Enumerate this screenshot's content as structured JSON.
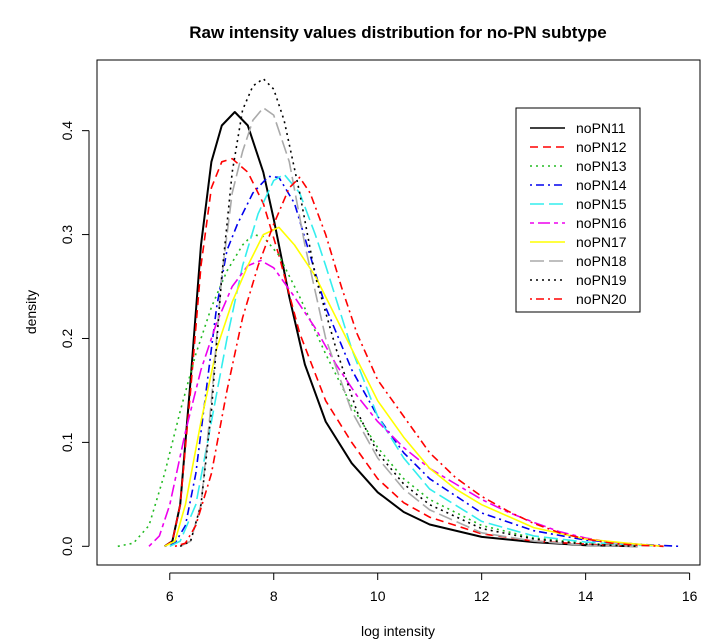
{
  "chart_data": {
    "type": "line",
    "title": "Raw intensity values distribution for no-PN subtype",
    "xlabel": "log intensity",
    "ylabel": "density",
    "xlim": [
      4.6,
      16.2
    ],
    "ylim": [
      -0.018,
      0.468
    ],
    "x_ticks": [
      6,
      8,
      10,
      12,
      14,
      16
    ],
    "y_ticks": [
      0.0,
      0.1,
      0.2,
      0.3,
      0.4
    ],
    "x_tick_labels": [
      "6",
      "8",
      "10",
      "12",
      "14",
      "16"
    ],
    "y_tick_labels": [
      "0.0",
      "0.1",
      "0.2",
      "0.3",
      "0.4"
    ],
    "grid": false,
    "legend_position": "top-right",
    "series": [
      {
        "name": "noPN11",
        "color": "#000000",
        "dash": "solid",
        "points": [
          [
            5.9,
            0
          ],
          [
            6.05,
            0.005
          ],
          [
            6.2,
            0.04
          ],
          [
            6.4,
            0.16
          ],
          [
            6.6,
            0.29
          ],
          [
            6.8,
            0.37
          ],
          [
            7.0,
            0.405
          ],
          [
            7.25,
            0.418
          ],
          [
            7.5,
            0.405
          ],
          [
            7.8,
            0.36
          ],
          [
            8.0,
            0.315
          ],
          [
            8.3,
            0.24
          ],
          [
            8.6,
            0.175
          ],
          [
            9.0,
            0.12
          ],
          [
            9.5,
            0.08
          ],
          [
            10.0,
            0.052
          ],
          [
            10.5,
            0.033
          ],
          [
            11.0,
            0.021
          ],
          [
            12.0,
            0.009
          ],
          [
            13.0,
            0.004
          ],
          [
            14.0,
            0.001
          ],
          [
            15.0,
            0
          ]
        ]
      },
      {
        "name": "noPN12",
        "color": "#ff0000",
        "dash": "dashed",
        "points": [
          [
            5.9,
            0
          ],
          [
            6.05,
            0.005
          ],
          [
            6.2,
            0.04
          ],
          [
            6.4,
            0.15
          ],
          [
            6.6,
            0.27
          ],
          [
            6.8,
            0.345
          ],
          [
            7.0,
            0.37
          ],
          [
            7.2,
            0.373
          ],
          [
            7.5,
            0.36
          ],
          [
            7.8,
            0.33
          ],
          [
            8.1,
            0.28
          ],
          [
            8.5,
            0.205
          ],
          [
            9.0,
            0.14
          ],
          [
            9.5,
            0.1
          ],
          [
            10.0,
            0.065
          ],
          [
            10.5,
            0.042
          ],
          [
            11.0,
            0.028
          ],
          [
            12.0,
            0.012
          ],
          [
            13.0,
            0.005
          ],
          [
            14.0,
            0.002
          ],
          [
            15.0,
            0
          ]
        ]
      },
      {
        "name": "noPN13",
        "color": "#22bb22",
        "dash": "dotted",
        "points": [
          [
            5.0,
            0
          ],
          [
            5.3,
            0.003
          ],
          [
            5.6,
            0.02
          ],
          [
            5.9,
            0.07
          ],
          [
            6.2,
            0.13
          ],
          [
            6.5,
            0.185
          ],
          [
            6.8,
            0.23
          ],
          [
            7.1,
            0.265
          ],
          [
            7.4,
            0.29
          ],
          [
            7.6,
            0.3
          ],
          [
            7.8,
            0.298
          ],
          [
            8.1,
            0.28
          ],
          [
            8.5,
            0.24
          ],
          [
            9.0,
            0.185
          ],
          [
            9.5,
            0.135
          ],
          [
            10.0,
            0.095
          ],
          [
            10.5,
            0.065
          ],
          [
            11.0,
            0.045
          ],
          [
            12.0,
            0.02
          ],
          [
            13.0,
            0.008
          ],
          [
            14.0,
            0.003
          ],
          [
            15.0,
            0
          ]
        ]
      },
      {
        "name": "noPN14",
        "color": "#0000ee",
        "dash": "dashdot",
        "points": [
          [
            5.9,
            0
          ],
          [
            6.1,
            0.003
          ],
          [
            6.3,
            0.02
          ],
          [
            6.5,
            0.07
          ],
          [
            6.7,
            0.15
          ],
          [
            6.9,
            0.23
          ],
          [
            7.1,
            0.285
          ],
          [
            7.3,
            0.31
          ],
          [
            7.6,
            0.34
          ],
          [
            7.9,
            0.356
          ],
          [
            8.1,
            0.355
          ],
          [
            8.4,
            0.33
          ],
          [
            8.7,
            0.28
          ],
          [
            9.0,
            0.23
          ],
          [
            9.5,
            0.17
          ],
          [
            10.0,
            0.125
          ],
          [
            10.5,
            0.09
          ],
          [
            11.0,
            0.065
          ],
          [
            12.0,
            0.032
          ],
          [
            13.0,
            0.015
          ],
          [
            14.0,
            0.006
          ],
          [
            15.0,
            0.002
          ],
          [
            15.8,
            0
          ]
        ]
      },
      {
        "name": "noPN15",
        "color": "#33eeee",
        "dash": "longdash",
        "points": [
          [
            6.0,
            0
          ],
          [
            6.2,
            0.005
          ],
          [
            6.5,
            0.04
          ],
          [
            6.8,
            0.12
          ],
          [
            7.1,
            0.2
          ],
          [
            7.4,
            0.27
          ],
          [
            7.7,
            0.32
          ],
          [
            8.0,
            0.352
          ],
          [
            8.2,
            0.358
          ],
          [
            8.5,
            0.34
          ],
          [
            8.8,
            0.3
          ],
          [
            9.0,
            0.27
          ],
          [
            9.5,
            0.19
          ],
          [
            10.0,
            0.125
          ],
          [
            10.5,
            0.085
          ],
          [
            11.0,
            0.055
          ],
          [
            12.0,
            0.024
          ],
          [
            13.0,
            0.01
          ],
          [
            14.0,
            0.004
          ],
          [
            15.0,
            0.001
          ],
          [
            15.5,
            0
          ]
        ]
      },
      {
        "name": "noPN16",
        "color": "#ee00ee",
        "dash": "twodash",
        "points": [
          [
            5.6,
            0
          ],
          [
            5.8,
            0.01
          ],
          [
            6.0,
            0.04
          ],
          [
            6.3,
            0.11
          ],
          [
            6.6,
            0.17
          ],
          [
            6.9,
            0.215
          ],
          [
            7.2,
            0.25
          ],
          [
            7.5,
            0.27
          ],
          [
            7.75,
            0.275
          ],
          [
            8.0,
            0.268
          ],
          [
            8.4,
            0.24
          ],
          [
            8.8,
            0.21
          ],
          [
            9.2,
            0.175
          ],
          [
            9.6,
            0.145
          ],
          [
            10.0,
            0.12
          ],
          [
            10.5,
            0.095
          ],
          [
            11.0,
            0.075
          ],
          [
            11.5,
            0.06
          ],
          [
            12.0,
            0.045
          ],
          [
            12.5,
            0.033
          ],
          [
            13.0,
            0.023
          ],
          [
            13.5,
            0.014
          ],
          [
            14.0,
            0.008
          ],
          [
            14.5,
            0.004
          ],
          [
            15.0,
            0.002
          ],
          [
            15.5,
            0
          ]
        ]
      },
      {
        "name": "noPN17",
        "color": "#ffff00",
        "dash": "solid",
        "points": [
          [
            5.9,
            0
          ],
          [
            6.1,
            0.005
          ],
          [
            6.3,
            0.04
          ],
          [
            6.6,
            0.12
          ],
          [
            6.9,
            0.19
          ],
          [
            7.2,
            0.235
          ],
          [
            7.5,
            0.27
          ],
          [
            7.8,
            0.3
          ],
          [
            8.1,
            0.307
          ],
          [
            8.4,
            0.29
          ],
          [
            8.8,
            0.26
          ],
          [
            9.2,
            0.22
          ],
          [
            9.6,
            0.18
          ],
          [
            10.0,
            0.14
          ],
          [
            10.5,
            0.105
          ],
          [
            11.0,
            0.075
          ],
          [
            11.5,
            0.055
          ],
          [
            12.0,
            0.04
          ],
          [
            13.0,
            0.018
          ],
          [
            14.0,
            0.007
          ],
          [
            15.0,
            0.002
          ],
          [
            15.5,
            0
          ]
        ]
      },
      {
        "name": "noPN18",
        "color": "#aaaaaa",
        "dash": "longdash",
        "points": [
          [
            6.2,
            0
          ],
          [
            6.4,
            0.005
          ],
          [
            6.6,
            0.04
          ],
          [
            6.8,
            0.14
          ],
          [
            7.0,
            0.26
          ],
          [
            7.2,
            0.34
          ],
          [
            7.4,
            0.38
          ],
          [
            7.6,
            0.41
          ],
          [
            7.8,
            0.422
          ],
          [
            8.0,
            0.415
          ],
          [
            8.3,
            0.37
          ],
          [
            8.6,
            0.29
          ],
          [
            9.0,
            0.2
          ],
          [
            9.5,
            0.13
          ],
          [
            10.0,
            0.085
          ],
          [
            10.5,
            0.055
          ],
          [
            11.0,
            0.035
          ],
          [
            12.0,
            0.013
          ],
          [
            13.0,
            0.005
          ],
          [
            14.0,
            0.001
          ],
          [
            15.0,
            0
          ]
        ]
      },
      {
        "name": "noPN19",
        "color": "#000000",
        "dash": "dotted",
        "points": [
          [
            6.2,
            0
          ],
          [
            6.4,
            0.005
          ],
          [
            6.6,
            0.04
          ],
          [
            6.8,
            0.13
          ],
          [
            7.0,
            0.26
          ],
          [
            7.2,
            0.36
          ],
          [
            7.4,
            0.42
          ],
          [
            7.6,
            0.443
          ],
          [
            7.8,
            0.45
          ],
          [
            8.0,
            0.44
          ],
          [
            8.2,
            0.41
          ],
          [
            8.5,
            0.34
          ],
          [
            8.8,
            0.26
          ],
          [
            9.2,
            0.19
          ],
          [
            9.6,
            0.13
          ],
          [
            10.0,
            0.09
          ],
          [
            10.5,
            0.06
          ],
          [
            11.0,
            0.04
          ],
          [
            12.0,
            0.017
          ],
          [
            13.0,
            0.007
          ],
          [
            14.0,
            0.002
          ],
          [
            15.0,
            0
          ]
        ]
      },
      {
        "name": "noPN20",
        "color": "#ff0000",
        "dash": "dashdot",
        "points": [
          [
            6.1,
            0
          ],
          [
            6.3,
            0.003
          ],
          [
            6.5,
            0.02
          ],
          [
            6.8,
            0.07
          ],
          [
            7.1,
            0.15
          ],
          [
            7.4,
            0.22
          ],
          [
            7.7,
            0.27
          ],
          [
            8.0,
            0.31
          ],
          [
            8.3,
            0.345
          ],
          [
            8.5,
            0.355
          ],
          [
            8.7,
            0.34
          ],
          [
            9.0,
            0.3
          ],
          [
            9.3,
            0.25
          ],
          [
            9.6,
            0.205
          ],
          [
            10.0,
            0.16
          ],
          [
            10.5,
            0.125
          ],
          [
            11.0,
            0.09
          ],
          [
            11.5,
            0.066
          ],
          [
            12.0,
            0.048
          ],
          [
            12.5,
            0.034
          ],
          [
            13.0,
            0.022
          ],
          [
            13.5,
            0.013
          ],
          [
            14.0,
            0.007
          ],
          [
            14.5,
            0.003
          ],
          [
            15.0,
            0.001
          ],
          [
            15.5,
            0
          ]
        ]
      }
    ]
  }
}
